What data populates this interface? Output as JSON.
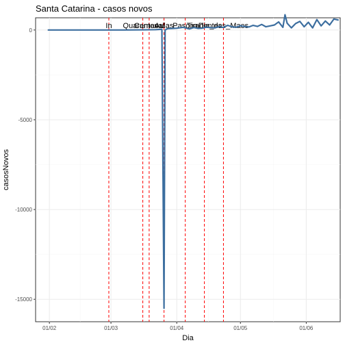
{
  "chart_data": {
    "type": "line",
    "title": "Santa Catarina - casos novos",
    "xlabel": "Dia",
    "ylabel": "casosNovos",
    "x_ticks": [
      {
        "day": 0,
        "label": "01/02"
      },
      {
        "day": 29,
        "label": "01/03"
      },
      {
        "day": 60,
        "label": "01/04"
      },
      {
        "day": 90,
        "label": "01/05"
      },
      {
        "day": 121,
        "label": "01/06"
      }
    ],
    "y_ticks": [
      {
        "value": 0,
        "label": "0"
      },
      {
        "value": -5000,
        "label": "-5000"
      },
      {
        "value": -10000,
        "label": "-10000"
      },
      {
        "value": -15000,
        "label": "-15000"
      }
    ],
    "xlim": [
      -6.5,
      137
    ],
    "ylim": [
      -16250,
      680
    ],
    "grid": true,
    "events": [
      {
        "day": 28,
        "label": "In"
      },
      {
        "day": 44,
        "label": "Quarentena"
      },
      {
        "day": 47,
        "label": "Carnaval"
      },
      {
        "day": 54,
        "label": "Aulas"
      },
      {
        "day": 64,
        "label": "Pascoa"
      },
      {
        "day": 73,
        "label": "Tiradentes"
      },
      {
        "day": 82,
        "label": "Dia_das_Maes"
      }
    ],
    "series": [
      {
        "name": "casosNovos",
        "color": "#3c6e9f",
        "x": [
          -0.5,
          5,
          10,
          15,
          20,
          25,
          30,
          35,
          40,
          45,
          50,
          53,
          54,
          54.5,
          55,
          55.5,
          56,
          60,
          63,
          64,
          66,
          68,
          70,
          72,
          74,
          76,
          78,
          80,
          82,
          84,
          86,
          88,
          90,
          92,
          94,
          96,
          98,
          100,
          102,
          104,
          106,
          108,
          110,
          111,
          112,
          114,
          116,
          118,
          120,
          122,
          124,
          126,
          128,
          130,
          132,
          134,
          136
        ],
        "y": [
          0,
          0,
          0,
          0,
          0,
          0,
          0,
          0,
          5,
          10,
          20,
          40,
          -15500,
          -10,
          40,
          60,
          80,
          100,
          150,
          120,
          60,
          140,
          90,
          100,
          160,
          130,
          120,
          190,
          140,
          260,
          180,
          150,
          240,
          190,
          170,
          260,
          200,
          310,
          180,
          230,
          280,
          450,
          150,
          850,
          380,
          120,
          360,
          480,
          180,
          430,
          120,
          580,
          230,
          500,
          280,
          610,
          560
        ]
      }
    ]
  }
}
